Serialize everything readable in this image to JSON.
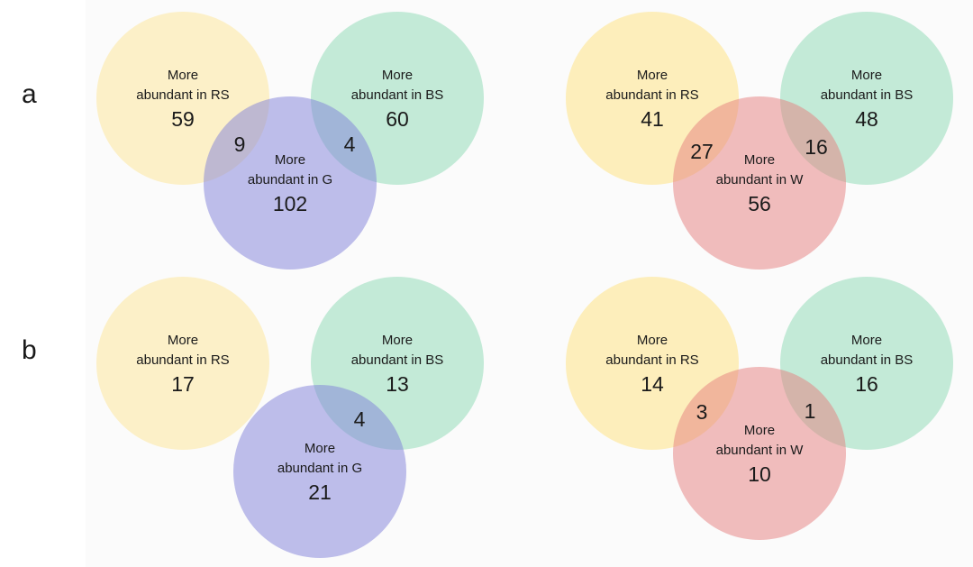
{
  "panels": {
    "a": "a",
    "b": "b"
  },
  "colors": {
    "rs": "#fde9a6",
    "bs": "#9fdfbf",
    "g": "#7f7fd9",
    "w": "#e57d7d"
  },
  "label_more": "More",
  "label_rs": "abundant in RS",
  "label_bs": "abundant in BS",
  "label_g": "abundant in G",
  "label_w": "abundant in W",
  "a_left": {
    "rs": "59",
    "bs": "60",
    "g": "102",
    "rs_g": "9",
    "bs_g": "4"
  },
  "a_right": {
    "rs": "41",
    "bs": "48",
    "w": "56",
    "rs_w": "27",
    "bs_w": "16"
  },
  "b_left": {
    "rs": "17",
    "bs": "13",
    "g": "21",
    "bs_g": "4"
  },
  "b_right": {
    "rs": "14",
    "bs": "16",
    "w": "10",
    "rs_w": "3",
    "bs_w": "1"
  }
}
